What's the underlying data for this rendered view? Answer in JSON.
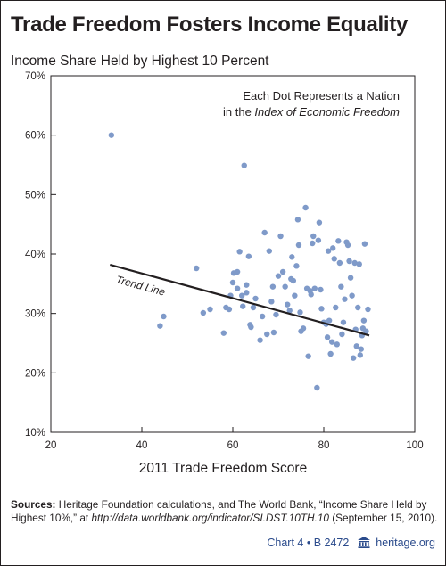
{
  "chart_data": {
    "type": "scatter",
    "title": "Trade Freedom Fosters Income Equality",
    "ylabel": "Income Share Held by Highest 10 Percent",
    "xlabel": "2011 Trade Freedom Score",
    "xlim": [
      20,
      100
    ],
    "ylim": [
      10,
      70
    ],
    "x_ticks": [
      "20",
      "40",
      "60",
      "80",
      "100"
    ],
    "y_ticks": [
      "10%",
      "20%",
      "30%",
      "40%",
      "50%",
      "60%",
      "70%"
    ],
    "annotation_line1": "Each Dot Represents a Nation",
    "annotation_line2_prefix": "in the ",
    "annotation_line2_italic": "Index of Economic Freedom",
    "trend_label": "Trend Line",
    "trend_line": {
      "x": [
        33,
        90
      ],
      "y": [
        38.2,
        26.3
      ]
    },
    "colors": {
      "dot": "#7f9ac9",
      "trend": "#231f20",
      "axes": "#231f20"
    },
    "points": [
      [
        33.3,
        60.0
      ],
      [
        44.0,
        27.9
      ],
      [
        44.8,
        29.5
      ],
      [
        52.0,
        37.6
      ],
      [
        53.5,
        30.1
      ],
      [
        55.0,
        30.7
      ],
      [
        58.0,
        26.7
      ],
      [
        58.5,
        31.0
      ],
      [
        59.2,
        30.7
      ],
      [
        59.5,
        33.0
      ],
      [
        60.0,
        35.2
      ],
      [
        60.2,
        36.8
      ],
      [
        61.0,
        37.0
      ],
      [
        61.0,
        34.2
      ],
      [
        61.5,
        40.4
      ],
      [
        62.0,
        33.0
      ],
      [
        62.2,
        31.2
      ],
      [
        62.5,
        54.9
      ],
      [
        63.0,
        34.8
      ],
      [
        63.0,
        33.5
      ],
      [
        63.5,
        39.6
      ],
      [
        63.8,
        28.1
      ],
      [
        64.0,
        27.7
      ],
      [
        64.5,
        31.0
      ],
      [
        65.0,
        32.5
      ],
      [
        66.0,
        25.5
      ],
      [
        66.5,
        29.5
      ],
      [
        67.0,
        43.6
      ],
      [
        67.5,
        26.5
      ],
      [
        68.0,
        40.5
      ],
      [
        68.5,
        32.0
      ],
      [
        68.8,
        34.5
      ],
      [
        69.0,
        26.8
      ],
      [
        69.5,
        29.8
      ],
      [
        70.0,
        36.3
      ],
      [
        70.5,
        43.0
      ],
      [
        71.0,
        37.0
      ],
      [
        71.5,
        34.5
      ],
      [
        72.0,
        31.5
      ],
      [
        72.5,
        30.5
      ],
      [
        72.8,
        35.8
      ],
      [
        73.0,
        39.5
      ],
      [
        73.3,
        35.5
      ],
      [
        73.6,
        33.0
      ],
      [
        74.0,
        38.0
      ],
      [
        74.3,
        45.8
      ],
      [
        74.5,
        41.5
      ],
      [
        74.8,
        30.2
      ],
      [
        75.0,
        27.0
      ],
      [
        75.5,
        27.5
      ],
      [
        76.0,
        47.8
      ],
      [
        76.3,
        34.2
      ],
      [
        76.6,
        22.8
      ],
      [
        77.0,
        33.8
      ],
      [
        77.2,
        33.2
      ],
      [
        77.5,
        41.8
      ],
      [
        77.7,
        43.0
      ],
      [
        78.0,
        34.2
      ],
      [
        78.5,
        17.5
      ],
      [
        78.8,
        42.3
      ],
      [
        79.0,
        45.3
      ],
      [
        79.3,
        34.0
      ],
      [
        79.5,
        30.8
      ],
      [
        80.0,
        28.5
      ],
      [
        80.5,
        28.2
      ],
      [
        80.8,
        26.0
      ],
      [
        81.0,
        40.5
      ],
      [
        81.2,
        28.8
      ],
      [
        81.5,
        23.2
      ],
      [
        81.8,
        25.2
      ],
      [
        82.0,
        41.0
      ],
      [
        82.3,
        39.2
      ],
      [
        82.6,
        31.0
      ],
      [
        82.9,
        24.8
      ],
      [
        83.2,
        42.2
      ],
      [
        83.5,
        38.5
      ],
      [
        83.8,
        34.5
      ],
      [
        84.0,
        26.5
      ],
      [
        84.3,
        28.5
      ],
      [
        84.6,
        32.4
      ],
      [
        85.0,
        42.0
      ],
      [
        85.3,
        41.5
      ],
      [
        85.6,
        38.8
      ],
      [
        85.9,
        36.0
      ],
      [
        86.2,
        33.0
      ],
      [
        86.5,
        22.5
      ],
      [
        86.8,
        38.5
      ],
      [
        87.0,
        27.3
      ],
      [
        87.2,
        24.5
      ],
      [
        87.5,
        31.0
      ],
      [
        87.8,
        38.3
      ],
      [
        88.0,
        23.0
      ],
      [
        88.2,
        24.0
      ],
      [
        88.4,
        26.3
      ],
      [
        88.6,
        27.5
      ],
      [
        88.8,
        28.8
      ],
      [
        89.0,
        41.7
      ],
      [
        89.3,
        27.0
      ],
      [
        89.7,
        30.7
      ]
    ]
  },
  "sources": {
    "label": "Sources:",
    "text1": " Heritage Foundation calculations, and The World Bank, “Income Share Held by Highest 10%,” at ",
    "url": "http://data.worldbank.org/indicator/SI.DST.10TH.10",
    "text2": " (September 15, 2010)."
  },
  "footer": {
    "chart_ref": "Chart 4 • B 2472",
    "site": "heritage.org"
  }
}
